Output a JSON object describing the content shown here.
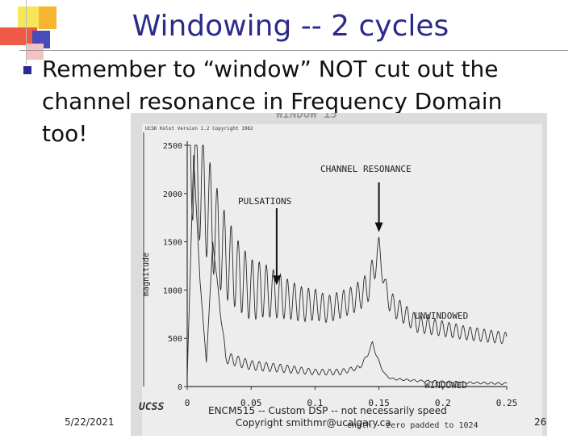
{
  "slide": {
    "title": "Windowing -- 2 cycles",
    "bullet_text": "Remember to “window” NOT cut out the channel resonance in Frequency Domain too!",
    "footer_date": "5/22/2021",
    "footer_course": "ENCM515 -- Custom DSP -- not necessarily speed",
    "footer_copyright": "Copyright smithmr@ucalgary.ca",
    "page_number": "26"
  },
  "figure": {
    "header_text": "UCSK Kolot Version 1.2 Copyright 1982",
    "faint_title": "WINDOW  15",
    "annotations": {
      "channel_resonance": "CHANNEL RESONANCE",
      "pulsations": "PULSATIONS",
      "unwindowed": "UNWINDOWED",
      "windowed": "WINDOWED"
    },
    "logo_text": "UCSS",
    "bottom_note": "ength - zero padded to 1024"
  },
  "chart_data": {
    "type": "line",
    "title": "",
    "xlabel": "",
    "ylabel": "magnitude",
    "xlim": [
      0,
      0.25
    ],
    "ylim": [
      0,
      2500
    ],
    "x_ticks": [
      "0",
      "0.05",
      "0.1",
      "0.15",
      "0.2",
      "0.25"
    ],
    "y_ticks": [
      "0",
      "500",
      "1000",
      "1500",
      "2000",
      "2500"
    ],
    "series": [
      {
        "name": "UNWINDOWED",
        "x": [
          0,
          0.005,
          0.01,
          0.015,
          0.02,
          0.025,
          0.03,
          0.035,
          0.04,
          0.05,
          0.06,
          0.07,
          0.08,
          0.09,
          0.1,
          0.11,
          0.12,
          0.13,
          0.14,
          0.145,
          0.15,
          0.155,
          0.16,
          0.17,
          0.18,
          0.2,
          0.22,
          0.25
        ],
        "values": [
          2500,
          2300,
          2100,
          1900,
          1700,
          1500,
          1350,
          1250,
          1150,
          1000,
          1000,
          950,
          900,
          850,
          850,
          800,
          850,
          900,
          1000,
          1150,
          1450,
          1000,
          850,
          750,
          650,
          600,
          550,
          500
        ],
        "oscillation_amplitude": [
          600,
          620,
          600,
          560,
          520,
          480,
          440,
          400,
          360,
          320,
          280,
          240,
          200,
          180,
          160,
          140,
          140,
          140,
          160,
          180,
          100,
          120,
          120,
          100,
          90,
          80,
          70,
          60
        ]
      },
      {
        "name": "WINDOWED",
        "x": [
          0,
          0.005,
          0.01,
          0.015,
          0.02,
          0.03,
          0.05,
          0.08,
          0.1,
          0.12,
          0.135,
          0.14,
          0.145,
          0.15,
          0.155,
          0.16,
          0.18,
          0.2,
          0.22,
          0.25
        ],
        "values": [
          100,
          2400,
          1100,
          250,
          1500,
          300,
          220,
          180,
          150,
          150,
          200,
          300,
          450,
          250,
          120,
          80,
          60,
          50,
          40,
          30
        ],
        "oscillation_amplitude": [
          0,
          0,
          0,
          0,
          0,
          60,
          50,
          40,
          30,
          30,
          20,
          20,
          20,
          20,
          10,
          10,
          10,
          10,
          10,
          10
        ]
      }
    ],
    "arrows": [
      {
        "label": "PULSATIONS",
        "x": 0.07,
        "y": 1000
      },
      {
        "label": "CHANNEL RESONANCE",
        "x": 0.15,
        "y": 1550
      }
    ]
  }
}
